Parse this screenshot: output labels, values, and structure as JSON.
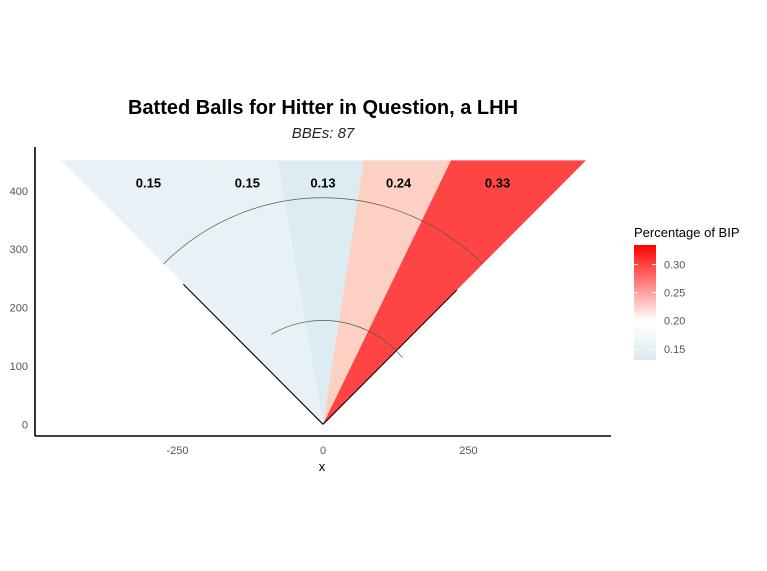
{
  "chart_data": {
    "type": "heatmap",
    "title": "Batted Balls for Hitter in Question, a LHH",
    "subtitle": "BBEs: 87",
    "xlabel": "x",
    "ylabel": "",
    "xlim": [
      -495,
      495
    ],
    "ylim": [
      -20,
      475
    ],
    "x_ticks": [
      -250,
      0,
      250
    ],
    "x_tick_labels": [
      "-250",
      "0",
      "250"
    ],
    "y_ticks": [
      0,
      100,
      200,
      300,
      400
    ],
    "y_tick_labels": [
      "0",
      "100",
      "200",
      "300",
      "400"
    ],
    "grid": false,
    "field": {
      "outer_y": 452,
      "foul_line_point_left": [
        -240,
        240
      ],
      "foul_line_point_right": [
        230,
        230
      ],
      "outfield_arc": {
        "center": [
          0,
          0
        ],
        "radius": 388,
        "angle_start_deg": 135,
        "angle_end_deg": 45
      },
      "infield_arc": {
        "center": [
          0,
          0
        ],
        "radius": 178,
        "angle_start_deg": 120,
        "angle_end_deg": 40
      }
    },
    "zones": [
      {
        "label": "0.15",
        "value": 0.15,
        "color": "#e8f1f6",
        "edges_at_top_x": [
          -450,
          -195
        ],
        "label_pos": [
          -300,
          414
        ]
      },
      {
        "label": "0.15",
        "value": 0.15,
        "color": "#e8f1f6",
        "edges_at_top_x": [
          -195,
          -78
        ],
        "label_pos": [
          -130,
          414
        ]
      },
      {
        "label": "0.13",
        "value": 0.13,
        "color": "#ddebf3",
        "edges_at_top_x": [
          -78,
          70
        ],
        "label_pos": [
          0,
          414
        ]
      },
      {
        "label": "0.24",
        "value": 0.24,
        "color": "#fdd0c4",
        "edges_at_top_x": [
          70,
          220
        ],
        "label_pos": [
          130,
          414
        ]
      },
      {
        "label": "0.33",
        "value": 0.33,
        "color": "#ff4444",
        "edges_at_top_x": [
          220,
          452
        ],
        "label_pos": [
          300,
          414
        ]
      }
    ],
    "legend": {
      "title": "Percentage of BIP",
      "position": "right",
      "range": [
        0.13,
        0.335
      ],
      "colors": [
        "#dbe9f1",
        "#ffffff",
        "#ff0000"
      ],
      "ticks": [
        0.15,
        0.2,
        0.25,
        0.3
      ],
      "tick_labels": [
        "0.15",
        "0.20",
        "0.25",
        "0.30"
      ]
    }
  }
}
